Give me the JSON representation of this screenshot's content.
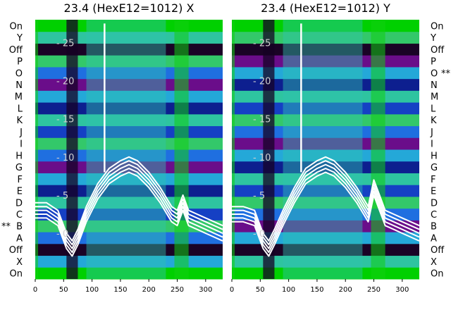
{
  "chart_data": [
    {
      "type": "heatmap",
      "title": "23.4 (HexE12=1012) X",
      "xlim": [
        0,
        330
      ],
      "x_ticks": [
        0,
        50,
        100,
        150,
        200,
        250,
        300
      ],
      "ylim": [
        -6,
        28
      ],
      "y_ticks": [
        0,
        5,
        10,
        15,
        20,
        25
      ],
      "row_labels": [
        "On",
        "X",
        "Off",
        "A",
        "B",
        "C",
        "D",
        "E",
        "F",
        "G",
        "H",
        "I",
        "J",
        "K",
        "L",
        "M",
        "N",
        "O",
        "P",
        "Off",
        "Y",
        "On"
      ],
      "row_labels_side": "left",
      "marked_rows": [
        {
          "row": "B",
          "mark": "**"
        }
      ],
      "row_palette": [
        "#0d1f8f",
        "#1540c4",
        "#1f6fe0",
        "#24a8d8",
        "#2ec4a0",
        "#33c86a",
        "#6a0d8a",
        "#3a064f",
        "#1a0326",
        "#00d000"
      ],
      "bright_bands": [
        [
          0,
          5
        ],
        [
          245,
          270
        ]
      ],
      "dark_band": [
        55,
        75
      ],
      "series_overlay": {
        "color": "#ffffff",
        "x": [
          0,
          20,
          40,
          55,
          65,
          75,
          90,
          110,
          130,
          150,
          165,
          180,
          200,
          220,
          240,
          250,
          260,
          270,
          285,
          300,
          315,
          330
        ],
        "y": [
          3,
          3,
          2,
          -1,
          -2,
          -0.5,
          2.5,
          5.5,
          7.5,
          8.5,
          9,
          8.5,
          7,
          5,
          2.5,
          2,
          4,
          2,
          1.5,
          1,
          0.5,
          0
        ]
      }
    },
    {
      "type": "heatmap",
      "title": "23.4 (HexE12=1012) Y",
      "xlim": [
        0,
        330
      ],
      "x_ticks": [
        0,
        50,
        100,
        150,
        200,
        250,
        300
      ],
      "ylim": [
        -6,
        28
      ],
      "y_ticks": [
        0,
        5,
        10,
        15,
        20,
        25
      ],
      "row_labels": [
        "On",
        "X",
        "Off",
        "A",
        "B",
        "C",
        "D",
        "E",
        "F",
        "G",
        "H",
        "I",
        "J",
        "K",
        "L",
        "M",
        "N",
        "O",
        "P",
        "Off",
        "Y",
        "On"
      ],
      "row_labels_side": "right",
      "marked_rows": [
        {
          "row": "O",
          "mark": "**"
        }
      ],
      "row_palette": [
        "#0d1f8f",
        "#1540c4",
        "#1f6fe0",
        "#24a8d8",
        "#2ec4a0",
        "#33c86a",
        "#6a0d8a",
        "#3a064f",
        "#1a0326",
        "#00d000"
      ],
      "bright_bands": [
        [
          0,
          5
        ],
        [
          245,
          270
        ]
      ],
      "dark_band": [
        55,
        75
      ],
      "series_overlay": {
        "color": "#ffffff",
        "x": [
          0,
          20,
          40,
          55,
          65,
          75,
          90,
          110,
          130,
          150,
          165,
          180,
          200,
          220,
          240,
          250,
          260,
          270,
          285,
          300,
          315,
          330
        ],
        "y": [
          2.5,
          2.5,
          2,
          -1,
          -2,
          -0.5,
          2,
          5,
          7.5,
          8.5,
          9,
          8.5,
          7,
          5,
          2.5,
          6,
          4,
          2,
          1.5,
          1,
          0.5,
          0
        ]
      }
    }
  ]
}
